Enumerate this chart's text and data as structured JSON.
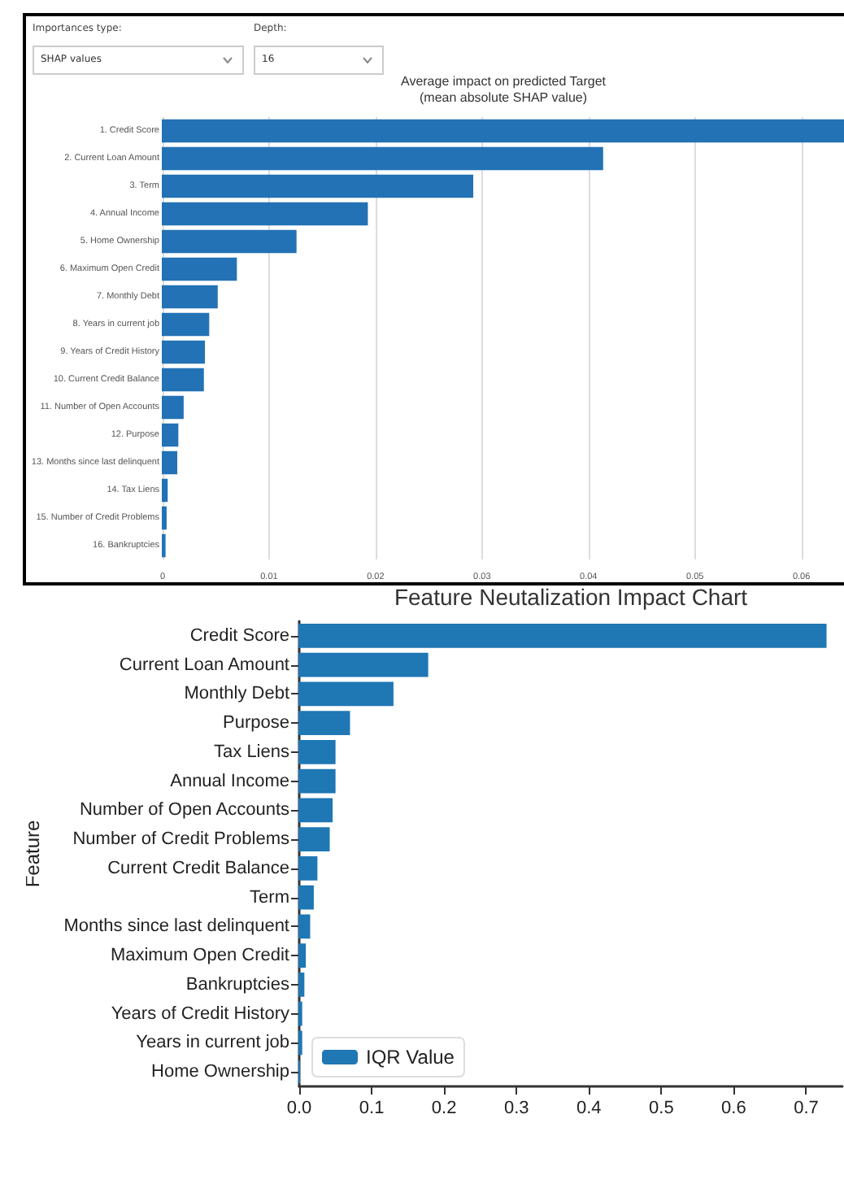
{
  "chart_data": [
    {
      "type": "bar",
      "orientation": "horizontal",
      "title": "Average impact on predicted Target",
      "subtitle": "(mean absolute SHAP value)",
      "annotations": [
        "Importances type:",
        "SHAP values",
        "Depth:",
        "16"
      ],
      "categories": [
        "1. Credit Score",
        "2. Current Loan Amount",
        "3. Term",
        "4. Annual Income",
        "5. Home Ownership",
        "6. Maximum Open Credit",
        "7. Monthly Debt",
        "8. Years in current job",
        "9. Years of Credit History",
        "10. Current Credit Balance",
        "11. Number of Open Accounts",
        "12. Purpose",
        "13. Months since last delinquent",
        "14. Tax Liens",
        "15. Number of Credit Problems",
        "16. Bankruptcies"
      ],
      "values": [
        0.064,
        0.0413,
        0.0291,
        0.0192,
        0.0125,
        0.0069,
        0.0051,
        0.0043,
        0.0039,
        0.0038,
        0.0019,
        0.0014,
        0.0013,
        0.0004,
        0.0003,
        0.0002
      ],
      "color": "#2372b5",
      "xlim": [
        0,
        0.064
      ],
      "xticks": [
        0,
        0.01,
        0.02,
        0.03,
        0.04,
        0.05,
        0.06
      ],
      "grid": "x"
    },
    {
      "type": "bar",
      "orientation": "horizontal",
      "title": "Feature Neutalization Impact Chart",
      "ylabel": "Feature",
      "categories": [
        "Credit Score",
        "Current Loan Amount",
        "Monthly Debt",
        "Purpose",
        "Tax Liens",
        "Annual Income",
        "Number of Open Accounts",
        "Number of Credit Problems",
        "Current Credit Balance",
        "Term",
        "Months since last delinquent",
        "Maximum Open Credit",
        "Bankruptcies",
        "Years of Credit History",
        "Years in current job",
        "Home Ownership"
      ],
      "series": [
        {
          "name": "IQR Value",
          "color": "#1f77b4",
          "values": [
            0.727,
            0.177,
            0.129,
            0.069,
            0.049,
            0.049,
            0.045,
            0.041,
            0.024,
            0.019,
            0.014,
            0.008,
            0.006,
            0.003,
            0.003,
            0
          ]
        }
      ],
      "xlim": [
        0,
        0.75
      ],
      "xticks": [
        {
          "value": 0,
          "label": "0.0"
        },
        {
          "value": 0.1,
          "label": "0.1"
        },
        {
          "value": 0.2,
          "label": "0.2"
        },
        {
          "value": 0.3,
          "label": "0.3"
        },
        {
          "value": 0.4,
          "label": "0.4"
        },
        {
          "value": 0.5,
          "label": "0.5"
        },
        {
          "value": 0.6,
          "label": "0.6"
        },
        {
          "value": 0.7,
          "label": "0.7"
        }
      ],
      "grid": false,
      "legend": "bottom left"
    }
  ]
}
